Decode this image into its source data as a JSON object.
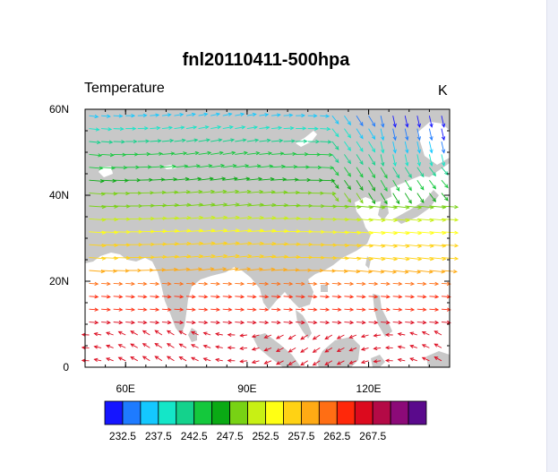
{
  "title": "fnl20110411-500hpa",
  "left_string": "Temperature",
  "right_string": "K",
  "map": {
    "lon_range": [
      50,
      140
    ],
    "lat_range": [
      0,
      60
    ],
    "lon_ticks": [
      {
        "value": 60,
        "label": "60E"
      },
      {
        "value": 90,
        "label": "90E"
      },
      {
        "value": 120,
        "label": "120E"
      }
    ],
    "lat_ticks": [
      {
        "value": 0,
        "label": "0"
      },
      {
        "value": 20,
        "label": "20N"
      },
      {
        "value": 40,
        "label": "40N"
      },
      {
        "value": 60,
        "label": "60N"
      }
    ],
    "land_color": "#c8c8c8",
    "ocean_color": "#ffffff"
  },
  "colorbar": {
    "colors": [
      "#1515ff",
      "#1e7bff",
      "#14c8ff",
      "#14e6c8",
      "#14d28c",
      "#14c83c",
      "#0aaa14",
      "#78d214",
      "#c8f014",
      "#ffff14",
      "#ffd214",
      "#ffaa14",
      "#ff6e14",
      "#ff280a",
      "#dc0a1e",
      "#b40a46",
      "#8c0a78",
      "#5a0a8c"
    ],
    "labels": [
      "232.5",
      "237.5",
      "242.5",
      "247.5",
      "252.5",
      "257.5",
      "262.5",
      "267.5"
    ]
  }
}
